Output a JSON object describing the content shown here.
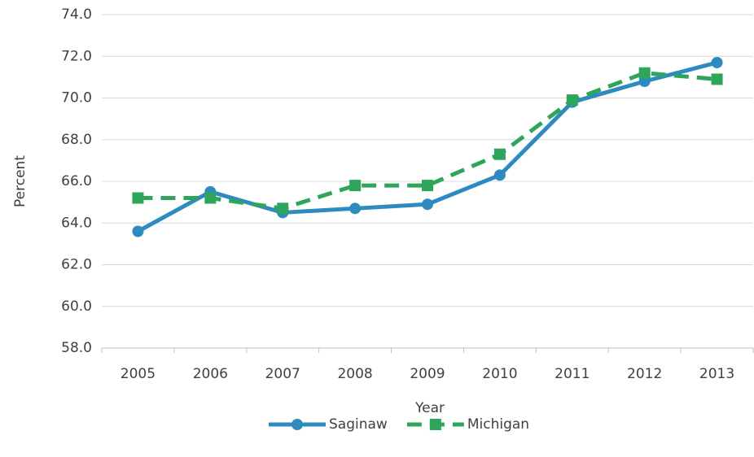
{
  "chart_data": {
    "type": "line",
    "x_label": "Year",
    "y_label": "Percent",
    "categories": [
      "2005",
      "2006",
      "2007",
      "2008",
      "2009",
      "2010",
      "2011",
      "2012",
      "2013"
    ],
    "series": [
      {
        "name": "Saginaw",
        "color": "#2e8bc0",
        "marker": "circle",
        "dash": false,
        "values": [
          63.6,
          65.5,
          64.5,
          64.7,
          64.9,
          66.3,
          69.8,
          70.8,
          71.7
        ]
      },
      {
        "name": "Michigan",
        "color": "#2ea55a",
        "marker": "square",
        "dash": true,
        "values": [
          65.2,
          65.2,
          64.7,
          65.8,
          65.8,
          67.3,
          69.9,
          71.2,
          70.9
        ]
      }
    ],
    "ylim": [
      58,
      74
    ],
    "yticks": [
      {
        "value": 58,
        "label": "58.0"
      },
      {
        "value": 60,
        "label": "60.0"
      },
      {
        "value": 62,
        "label": "62.0"
      },
      {
        "value": 64,
        "label": "64.0"
      },
      {
        "value": 66,
        "label": "66.0"
      },
      {
        "value": 68,
        "label": "68.0"
      },
      {
        "value": 70,
        "label": "70.0"
      },
      {
        "value": 72,
        "label": "72.0"
      },
      {
        "value": 74,
        "label": "74.0"
      }
    ],
    "grid": true,
    "legend": "bottom"
  }
}
